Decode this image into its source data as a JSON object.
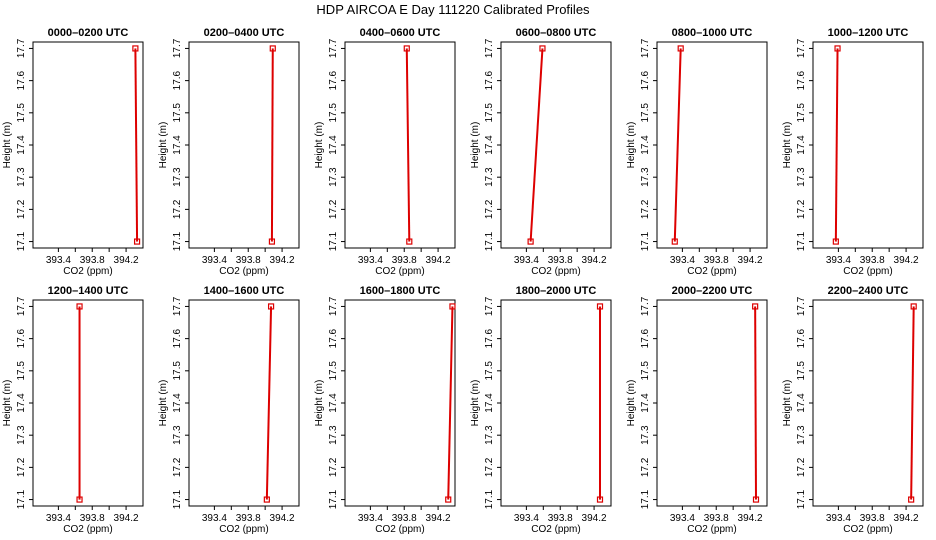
{
  "title": "HDP AIRCOA E  Day 111220  Calibrated Profiles",
  "colors": {
    "series": "#dd0000",
    "frame": "#000000"
  },
  "chart_data": [
    {
      "type": "line",
      "title": "0000–0200 UTC",
      "xlabel": "CO2 (ppm)",
      "ylabel": "Height (m)",
      "xlim": [
        393.1,
        394.4
      ],
      "ylim": [
        17.08,
        17.72
      ],
      "xticks": [
        "393.4",
        "393.8",
        "394.2"
      ],
      "yticks": [
        "17.1",
        "17.2",
        "17.3",
        "17.4",
        "17.5",
        "17.6",
        "17.7"
      ],
      "points": [
        {
          "x": 394.33,
          "y": 17.1
        },
        {
          "x": 394.31,
          "y": 17.7
        }
      ]
    },
    {
      "type": "line",
      "title": "0200–0400 UTC",
      "xlabel": "CO2 (ppm)",
      "ylabel": "Height (m)",
      "xlim": [
        393.1,
        394.4
      ],
      "ylim": [
        17.08,
        17.72
      ],
      "xticks": [
        "393.4",
        "393.8",
        "394.2"
      ],
      "yticks": [
        "17.1",
        "17.2",
        "17.3",
        "17.4",
        "17.5",
        "17.6",
        "17.7"
      ],
      "points": [
        {
          "x": 394.08,
          "y": 17.1
        },
        {
          "x": 394.09,
          "y": 17.7
        }
      ]
    },
    {
      "type": "line",
      "title": "0400–0600 UTC",
      "xlabel": "CO2 (ppm)",
      "ylabel": "Height (m)",
      "xlim": [
        393.1,
        394.4
      ],
      "ylim": [
        17.08,
        17.72
      ],
      "xticks": [
        "393.4",
        "393.8",
        "394.2"
      ],
      "yticks": [
        "17.1",
        "17.2",
        "17.3",
        "17.4",
        "17.5",
        "17.6",
        "17.7"
      ],
      "points": [
        {
          "x": 393.86,
          "y": 17.1
        },
        {
          "x": 393.83,
          "y": 17.7
        }
      ]
    },
    {
      "type": "line",
      "title": "0600–0800 UTC",
      "xlabel": "CO2 (ppm)",
      "ylabel": "Height (m)",
      "xlim": [
        393.1,
        394.4
      ],
      "ylim": [
        17.08,
        17.72
      ],
      "xticks": [
        "393.4",
        "393.8",
        "394.2"
      ],
      "yticks": [
        "17.1",
        "17.2",
        "17.3",
        "17.4",
        "17.5",
        "17.6",
        "17.7"
      ],
      "points": [
        {
          "x": 393.45,
          "y": 17.1
        },
        {
          "x": 393.59,
          "y": 17.7
        }
      ]
    },
    {
      "type": "line",
      "title": "0800–1000 UTC",
      "xlabel": "CO2 (ppm)",
      "ylabel": "Height (m)",
      "xlim": [
        393.1,
        394.4
      ],
      "ylim": [
        17.08,
        17.72
      ],
      "xticks": [
        "393.4",
        "393.8",
        "394.2"
      ],
      "yticks": [
        "17.1",
        "17.2",
        "17.3",
        "17.4",
        "17.5",
        "17.6",
        "17.7"
      ],
      "points": [
        {
          "x": 393.31,
          "y": 17.1
        },
        {
          "x": 393.38,
          "y": 17.7
        }
      ]
    },
    {
      "type": "line",
      "title": "1000–1200 UTC",
      "xlabel": "CO2 (ppm)",
      "ylabel": "Height (m)",
      "xlim": [
        393.1,
        394.4
      ],
      "ylim": [
        17.08,
        17.72
      ],
      "xticks": [
        "393.4",
        "393.8",
        "394.2"
      ],
      "yticks": [
        "17.1",
        "17.2",
        "17.3",
        "17.4",
        "17.5",
        "17.6",
        "17.7"
      ],
      "points": [
        {
          "x": 393.37,
          "y": 17.1
        },
        {
          "x": 393.39,
          "y": 17.7
        }
      ]
    },
    {
      "type": "line",
      "title": "1200–1400 UTC",
      "xlabel": "CO2 (ppm)",
      "ylabel": "Height (m)",
      "xlim": [
        393.1,
        394.4
      ],
      "ylim": [
        17.08,
        17.72
      ],
      "xticks": [
        "393.4",
        "393.8",
        "394.2"
      ],
      "yticks": [
        "17.1",
        "17.2",
        "17.3",
        "17.4",
        "17.5",
        "17.6",
        "17.7"
      ],
      "points": [
        {
          "x": 393.65,
          "y": 17.1
        },
        {
          "x": 393.65,
          "y": 17.7
        }
      ]
    },
    {
      "type": "line",
      "title": "1400–1600 UTC",
      "xlabel": "CO2 (ppm)",
      "ylabel": "Height (m)",
      "xlim": [
        393.1,
        394.4
      ],
      "ylim": [
        17.08,
        17.72
      ],
      "xticks": [
        "393.4",
        "393.8",
        "394.2"
      ],
      "yticks": [
        "17.1",
        "17.2",
        "17.3",
        "17.4",
        "17.5",
        "17.6",
        "17.7"
      ],
      "points": [
        {
          "x": 394.02,
          "y": 17.1
        },
        {
          "x": 394.07,
          "y": 17.7
        }
      ]
    },
    {
      "type": "line",
      "title": "1600–1800 UTC",
      "xlabel": "CO2 (ppm)",
      "ylabel": "Height (m)",
      "xlim": [
        393.1,
        394.4
      ],
      "ylim": [
        17.08,
        17.72
      ],
      "xticks": [
        "393.4",
        "393.8",
        "394.2"
      ],
      "yticks": [
        "17.1",
        "17.2",
        "17.3",
        "17.4",
        "17.5",
        "17.6",
        "17.7"
      ],
      "points": [
        {
          "x": 394.32,
          "y": 17.1
        },
        {
          "x": 394.37,
          "y": 17.7
        }
      ]
    },
    {
      "type": "line",
      "title": "1800–2000 UTC",
      "xlabel": "CO2 (ppm)",
      "ylabel": "Height (m)",
      "xlim": [
        393.1,
        394.4
      ],
      "ylim": [
        17.08,
        17.72
      ],
      "xticks": [
        "393.4",
        "393.8",
        "394.2"
      ],
      "yticks": [
        "17.1",
        "17.2",
        "17.3",
        "17.4",
        "17.5",
        "17.6",
        "17.7"
      ],
      "points": [
        {
          "x": 394.27,
          "y": 17.1
        },
        {
          "x": 394.27,
          "y": 17.7
        }
      ]
    },
    {
      "type": "line",
      "title": "2000–2200 UTC",
      "xlabel": "CO2 (ppm)",
      "ylabel": "Height (m)",
      "xlim": [
        393.1,
        394.4
      ],
      "ylim": [
        17.08,
        17.72
      ],
      "xticks": [
        "393.4",
        "393.8",
        "394.2"
      ],
      "yticks": [
        "17.1",
        "17.2",
        "17.3",
        "17.4",
        "17.5",
        "17.6",
        "17.7"
      ],
      "points": [
        {
          "x": 394.27,
          "y": 17.1
        },
        {
          "x": 394.26,
          "y": 17.7
        }
      ]
    },
    {
      "type": "line",
      "title": "2200–2400 UTC",
      "xlabel": "CO2 (ppm)",
      "ylabel": "Height (m)",
      "xlim": [
        393.1,
        394.4
      ],
      "ylim": [
        17.08,
        17.72
      ],
      "xticks": [
        "393.4",
        "393.8",
        "394.2"
      ],
      "yticks": [
        "17.1",
        "17.2",
        "17.3",
        "17.4",
        "17.5",
        "17.6",
        "17.7"
      ],
      "points": [
        {
          "x": 394.26,
          "y": 17.1
        },
        {
          "x": 394.29,
          "y": 17.7
        }
      ]
    }
  ]
}
